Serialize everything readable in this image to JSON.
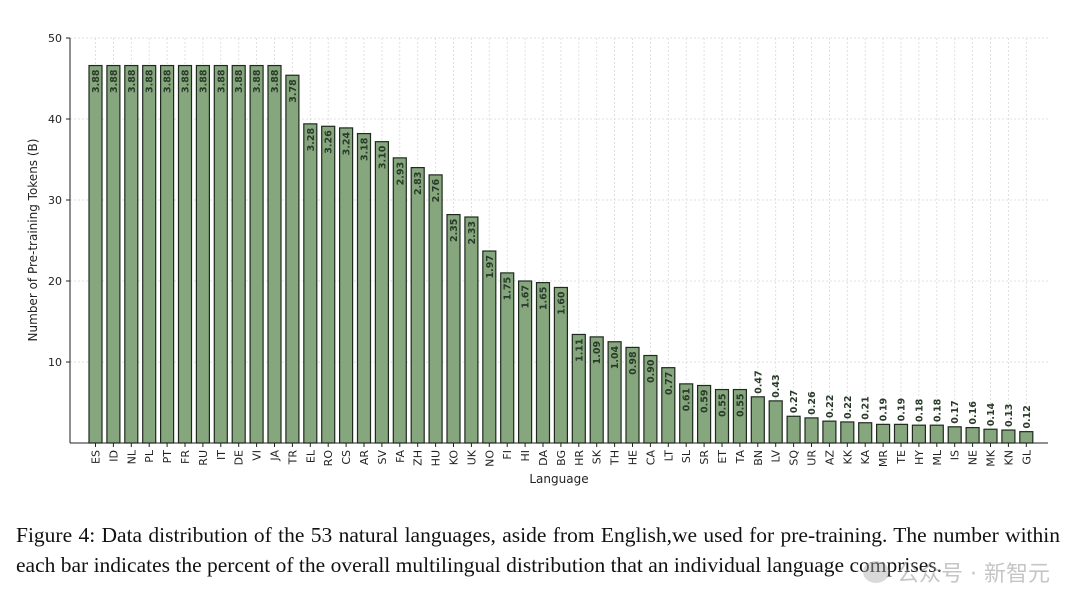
{
  "chart_data": {
    "type": "bar",
    "title": "",
    "xlabel": "Language",
    "ylabel": "Number of Pre-training Tokens (B)",
    "ylim": [
      0,
      50
    ],
    "yticks": [
      10,
      20,
      30,
      40,
      50
    ],
    "grid": true,
    "categories": [
      "ES",
      "ID",
      "NL",
      "PL",
      "PT",
      "FR",
      "RU",
      "IT",
      "DE",
      "VI",
      "JA",
      "TR",
      "EL",
      "RO",
      "CS",
      "AR",
      "SV",
      "FA",
      "ZH",
      "HU",
      "KO",
      "UK",
      "NO",
      "FI",
      "HI",
      "DA",
      "BG",
      "HR",
      "SK",
      "TH",
      "HE",
      "CA",
      "LT",
      "SL",
      "SR",
      "ET",
      "TA",
      "BN",
      "LV",
      "SQ",
      "UR",
      "AZ",
      "KK",
      "KA",
      "MR",
      "TE",
      "HY",
      "ML",
      "IS",
      "NE",
      "MK",
      "KN",
      "GL"
    ],
    "values": [
      46.6,
      46.6,
      46.6,
      46.6,
      46.6,
      46.6,
      46.6,
      46.6,
      46.6,
      46.6,
      46.6,
      45.4,
      39.4,
      39.1,
      38.9,
      38.2,
      37.2,
      35.2,
      34.0,
      33.1,
      28.2,
      27.9,
      23.7,
      21.0,
      20.0,
      19.8,
      19.2,
      13.4,
      13.1,
      12.5,
      11.8,
      10.8,
      9.3,
      7.3,
      7.1,
      6.6,
      6.6,
      5.7,
      5.2,
      3.3,
      3.1,
      2.7,
      2.6,
      2.5,
      2.3,
      2.3,
      2.2,
      2.2,
      2.0,
      1.9,
      1.7,
      1.6,
      1.4
    ],
    "percent_labels": [
      "3.88",
      "3.88",
      "3.88",
      "3.88",
      "3.88",
      "3.88",
      "3.88",
      "3.88",
      "3.88",
      "3.88",
      "3.88",
      "3.78",
      "3.28",
      "3.26",
      "3.24",
      "3.18",
      "3.10",
      "2.93",
      "2.83",
      "2.76",
      "2.35",
      "2.33",
      "1.97",
      "1.75",
      "1.67",
      "1.65",
      "1.60",
      "1.11",
      "1.09",
      "1.04",
      "0.98",
      "0.90",
      "0.77",
      "0.61",
      "0.59",
      "0.55",
      "0.55",
      "0.47",
      "0.43",
      "0.27",
      "0.26",
      "0.22",
      "0.22",
      "0.21",
      "0.19",
      "0.19",
      "0.18",
      "0.18",
      "0.17",
      "0.16",
      "0.14",
      "0.13",
      "0.12"
    ]
  },
  "caption": "Figure 4: Data distribution of the 53 natural languages, aside from English,we used for pre-training. The number within each bar indicates the percent of the overall multilingual distribution that an individual language comprises.",
  "watermark": "公众号 · 新智元"
}
